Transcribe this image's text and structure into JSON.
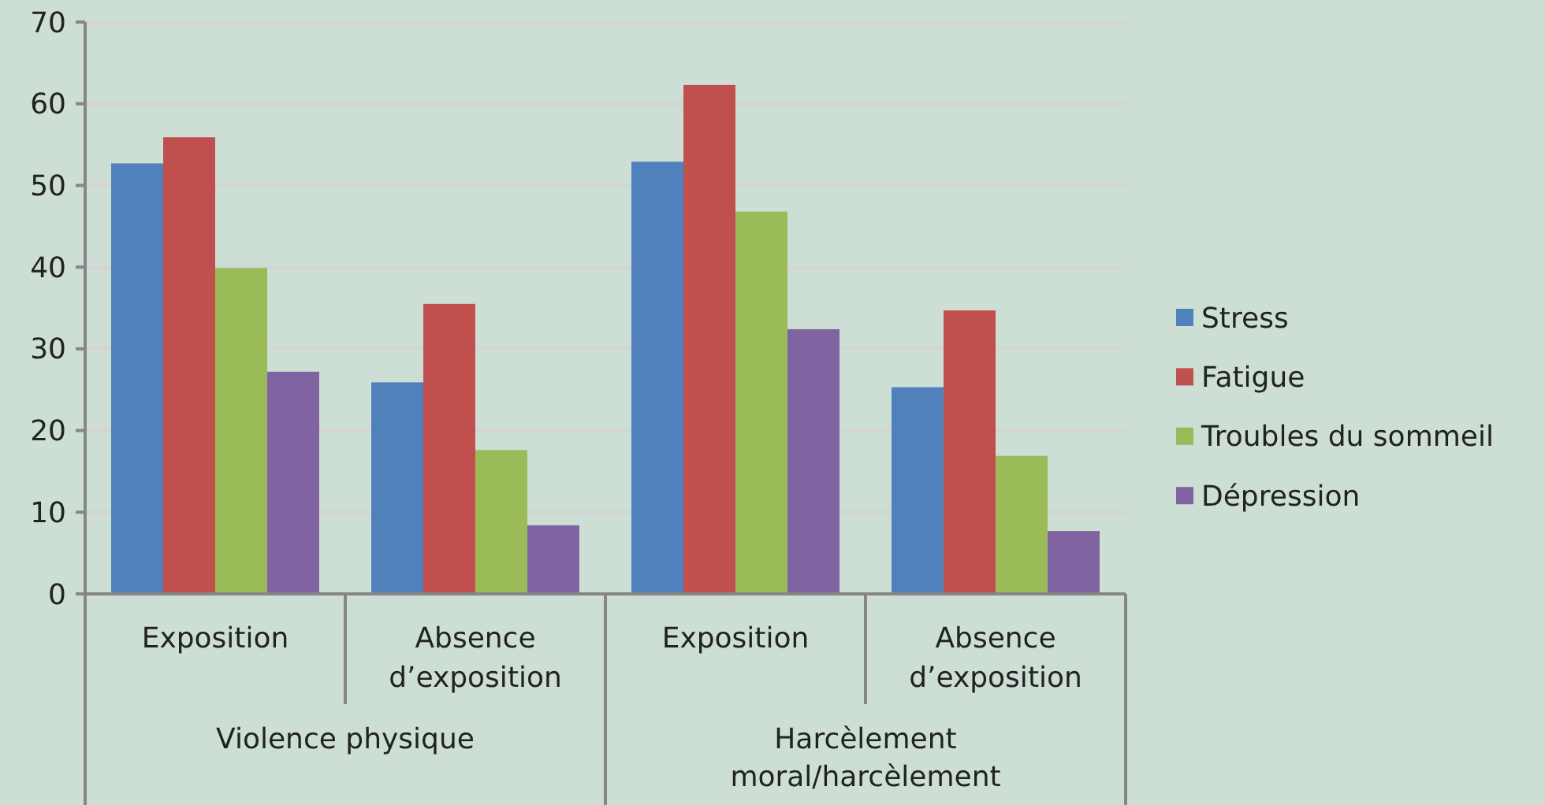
{
  "chart_data": {
    "type": "bar",
    "categories": [
      "Exposition",
      "Absence d’exposition",
      "Exposition",
      "Absence d’exposition"
    ],
    "series": [
      {
        "name": "Stress",
        "color": "#4f81bd",
        "values": [
          52.7,
          25.9,
          52.9,
          25.3
        ]
      },
      {
        "name": "Fatigue",
        "color": "#c0504d",
        "values": [
          55.9,
          35.5,
          62.3,
          34.7
        ]
      },
      {
        "name": "Troubles du sommeil",
        "color": "#9bbb59",
        "values": [
          39.9,
          17.6,
          46.8,
          16.9
        ]
      },
      {
        "name": "Dépression",
        "color": "#8064a2",
        "values": [
          27.2,
          8.4,
          32.4,
          7.7
        ]
      }
    ],
    "annotations": [
      "Violence physique",
      "Harcèlement moral/harcèlement"
    ],
    "ylim": [
      0,
      70
    ],
    "yticks": [
      0,
      10,
      20,
      30,
      40,
      50,
      60,
      70
    ],
    "grid": "y",
    "legend": "right"
  }
}
